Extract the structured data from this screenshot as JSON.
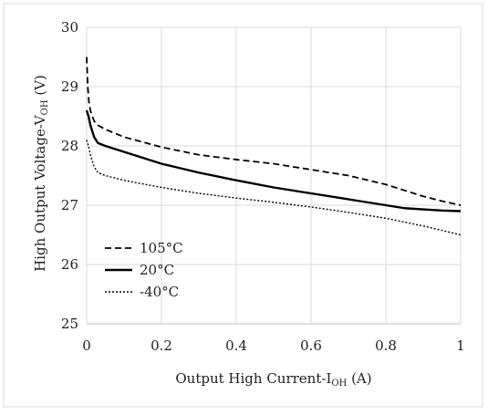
{
  "chart_data": {
    "type": "line",
    "title": "",
    "xlabel": "Output High Current-I",
    "xlabel_sub": "OH",
    "xlabel_unit": " (A)",
    "ylabel": "High Output Voltage-V",
    "ylabel_sub": "OH",
    "ylabel_unit": " (V)",
    "xlim": [
      0,
      1
    ],
    "ylim": [
      25,
      30
    ],
    "x_ticks": [
      "0",
      "0.2",
      "0.4",
      "0.6",
      "0.8",
      "1"
    ],
    "y_ticks": [
      "25",
      "26",
      "27",
      "28",
      "29",
      "30"
    ],
    "grid": true,
    "legend_position": "bottom-left",
    "series": [
      {
        "name": "105°C",
        "style": "dashed",
        "color": "#000000",
        "x": [
          0,
          0.003,
          0.006,
          0.01,
          0.015,
          0.02,
          0.03,
          0.05,
          0.1,
          0.2,
          0.3,
          0.4,
          0.5,
          0.6,
          0.7,
          0.8,
          0.85,
          0.9,
          0.95,
          1.0
        ],
        "y": [
          29.5,
          29.0,
          28.75,
          28.6,
          28.5,
          28.42,
          28.35,
          28.28,
          28.15,
          27.98,
          27.85,
          27.77,
          27.7,
          27.6,
          27.5,
          27.35,
          27.25,
          27.15,
          27.07,
          27.0
        ]
      },
      {
        "name": "20°C",
        "style": "solid",
        "color": "#000000",
        "x": [
          0,
          0.005,
          0.01,
          0.02,
          0.03,
          0.05,
          0.1,
          0.2,
          0.3,
          0.4,
          0.5,
          0.6,
          0.7,
          0.8,
          0.85,
          0.9,
          0.95,
          1.0
        ],
        "y": [
          28.6,
          28.5,
          28.35,
          28.15,
          28.05,
          28.0,
          27.9,
          27.7,
          27.55,
          27.42,
          27.3,
          27.2,
          27.1,
          27.0,
          26.95,
          26.93,
          26.91,
          26.9
        ]
      },
      {
        "name": "-40°C",
        "style": "dotted",
        "color": "#000000",
        "x": [
          0,
          0.005,
          0.01,
          0.02,
          0.03,
          0.05,
          0.1,
          0.2,
          0.3,
          0.4,
          0.5,
          0.6,
          0.7,
          0.8,
          0.9,
          1.0
        ],
        "y": [
          28.1,
          28.0,
          27.85,
          27.65,
          27.55,
          27.5,
          27.42,
          27.3,
          27.2,
          27.12,
          27.05,
          26.97,
          26.88,
          26.78,
          26.65,
          26.5
        ]
      }
    ]
  }
}
